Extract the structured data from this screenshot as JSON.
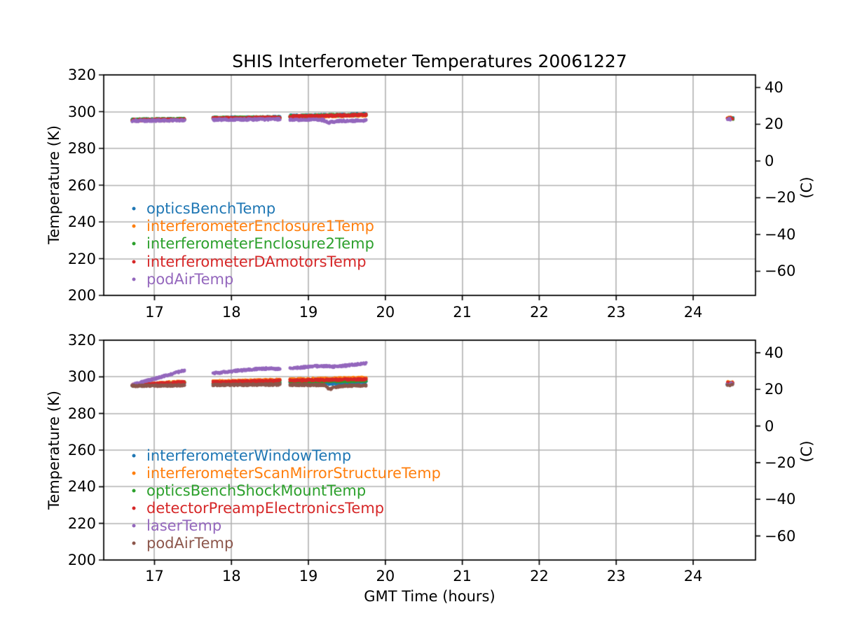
{
  "chart_data": [
    {
      "type": "scatter",
      "title": "SHIS Interferometer Temperatures 20061227",
      "xlabel": null,
      "ylabel_left": "Temperature (K)",
      "ylabel_right": "(C)",
      "xlim": [
        16.34,
        24.81
      ],
      "ylim_K": [
        200,
        320
      ],
      "xticks": [
        17,
        18,
        19,
        20,
        21,
        22,
        23,
        24
      ],
      "yticks_K": [
        200,
        220,
        240,
        260,
        280,
        300,
        320
      ],
      "yticks_C_values": [
        40,
        20,
        0,
        -20,
        -40,
        -60
      ],
      "yticks_C_labels": [
        "40",
        "20",
        "0",
        "−20",
        "−40",
        "−60"
      ],
      "grid": true,
      "legend_position": "lower-left-inside",
      "series": [
        {
          "name": "opticsBenchTemp",
          "color": "#1f77b4",
          "segments": [
            [
              [
                16.71,
                295.5
              ],
              [
                17.39,
                295.9
              ]
            ],
            [
              [
                17.76,
                296.6
              ],
              [
                18.2,
                296.8
              ],
              [
                18.63,
                296.9
              ]
            ],
            [
              [
                18.76,
                297.7
              ],
              [
                19.3,
                298.1
              ],
              [
                19.75,
                298.6
              ]
            ],
            [
              [
                24.44,
                296.3
              ],
              [
                24.52,
                296.3
              ]
            ]
          ]
        },
        {
          "name": "interferometerEnclosure1Temp",
          "color": "#ff7f0e",
          "segments": [
            [
              [
                16.71,
                295.3
              ],
              [
                17.39,
                295.7
              ]
            ],
            [
              [
                17.76,
                296.2
              ],
              [
                18.63,
                296.6
              ]
            ],
            [
              [
                18.76,
                297.2
              ],
              [
                19.75,
                298.0
              ]
            ],
            [
              [
                24.44,
                296.6
              ],
              [
                24.52,
                296.6
              ]
            ]
          ]
        },
        {
          "name": "interferometerEnclosure2Temp",
          "color": "#2ca02c",
          "segments": [
            [
              [
                16.71,
                295.6
              ],
              [
                17.39,
                296.0
              ]
            ],
            [
              [
                17.76,
                296.5
              ],
              [
                18.63,
                296.9
              ]
            ],
            [
              [
                18.76,
                297.5
              ],
              [
                19.75,
                298.3
              ]
            ],
            [
              [
                24.44,
                296.1
              ],
              [
                24.52,
                296.1
              ]
            ]
          ]
        },
        {
          "name": "interferometerDAmotorsTemp",
          "color": "#d62728",
          "segments": [
            [
              [
                16.71,
                295.3
              ],
              [
                17.39,
                295.7
              ]
            ],
            [
              [
                17.76,
                296.3
              ],
              [
                18.63,
                296.7
              ]
            ],
            [
              [
                18.76,
                297.4
              ],
              [
                19.3,
                297.8
              ],
              [
                19.75,
                298.3
              ]
            ],
            [
              [
                24.44,
                296.5
              ],
              [
                24.52,
                296.5
              ]
            ]
          ]
        },
        {
          "name": "podAirTemp",
          "color": "#9467bd",
          "segments": [
            [
              [
                16.71,
                295.0
              ],
              [
                17.39,
                295.3
              ]
            ],
            [
              [
                17.76,
                295.6
              ],
              [
                18.63,
                295.8
              ]
            ],
            [
              [
                18.76,
                295.6
              ],
              [
                19.18,
                295.5
              ],
              [
                19.27,
                294.0
              ],
              [
                19.38,
                294.9
              ],
              [
                19.55,
                295.0
              ],
              [
                19.75,
                295.2
              ]
            ],
            [
              [
                24.44,
                295.9
              ],
              [
                24.52,
                295.9
              ]
            ]
          ]
        }
      ]
    },
    {
      "type": "scatter",
      "title": null,
      "xlabel": "GMT Time (hours)",
      "ylabel_left": "Temperature (K)",
      "ylabel_right": "(C)",
      "xlim": [
        16.34,
        24.81
      ],
      "ylim_K": [
        200,
        320
      ],
      "xticks": [
        17,
        18,
        19,
        20,
        21,
        22,
        23,
        24
      ],
      "yticks_K": [
        200,
        220,
        240,
        260,
        280,
        300,
        320
      ],
      "yticks_C_values": [
        40,
        20,
        0,
        -20,
        -40,
        -60
      ],
      "yticks_C_labels": [
        "40",
        "20",
        "0",
        "−20",
        "−40",
        "−60"
      ],
      "grid": true,
      "legend_position": "lower-left-inside",
      "series": [
        {
          "name": "interferometerWindowTemp",
          "color": "#1f77b4",
          "segments": [
            [
              [
                16.71,
                295.3
              ],
              [
                17.39,
                296.2
              ]
            ],
            [
              [
                17.76,
                296.1
              ],
              [
                18.63,
                296.6
              ]
            ],
            [
              [
                18.76,
                296.6
              ],
              [
                19.2,
                296.8
              ],
              [
                19.27,
                296.3
              ],
              [
                19.75,
                297.0
              ]
            ],
            [
              [
                24.44,
                296.0
              ],
              [
                24.52,
                296.0
              ]
            ]
          ]
        },
        {
          "name": "interferometerScanMirrorStructureTemp",
          "color": "#ff7f0e",
          "segments": [
            [
              [
                16.71,
                295.5
              ],
              [
                17.39,
                297.4
              ]
            ],
            [
              [
                17.76,
                297.4
              ],
              [
                18.63,
                298.4
              ]
            ],
            [
              [
                18.76,
                298.5
              ],
              [
                19.75,
                299.4
              ]
            ],
            [
              [
                24.44,
                297.0
              ],
              [
                24.52,
                297.0
              ]
            ]
          ]
        },
        {
          "name": "opticsBenchShockMountTemp",
          "color": "#2ca02c",
          "segments": [
            [
              [
                16.71,
                295.4
              ],
              [
                17.39,
                296.7
              ]
            ],
            [
              [
                17.76,
                296.7
              ],
              [
                18.63,
                297.3
              ]
            ],
            [
              [
                18.76,
                297.4
              ],
              [
                19.75,
                297.9
              ]
            ],
            [
              [
                24.44,
                296.3
              ],
              [
                24.52,
                296.3
              ]
            ]
          ]
        },
        {
          "name": "detectorPreampElectronicsTemp",
          "color": "#d62728",
          "segments": [
            [
              [
                16.71,
                295.6
              ],
              [
                17.39,
                297.1
              ]
            ],
            [
              [
                17.76,
                297.1
              ],
              [
                18.63,
                297.9
              ]
            ],
            [
              [
                18.76,
                298.0
              ],
              [
                19.75,
                298.7
              ]
            ],
            [
              [
                24.44,
                296.6
              ],
              [
                24.52,
                296.6
              ]
            ]
          ]
        },
        {
          "name": "laserTemp",
          "color": "#9467bd",
          "segments": [
            [
              [
                16.71,
                295.6
              ],
              [
                17.39,
                303.5
              ]
            ],
            [
              [
                17.76,
                301.9
              ],
              [
                18.05,
                303.2
              ],
              [
                18.3,
                304.2
              ],
              [
                18.45,
                304.5
              ],
              [
                18.63,
                304.4
              ]
            ],
            [
              [
                18.76,
                304.5
              ],
              [
                19.05,
                305.7
              ],
              [
                19.2,
                305.9
              ],
              [
                19.32,
                305.5
              ],
              [
                19.5,
                306.2
              ],
              [
                19.75,
                307.3
              ]
            ],
            [
              [
                24.44,
                296.2
              ],
              [
                24.52,
                296.2
              ]
            ]
          ]
        },
        {
          "name": "podAirTemp",
          "color": "#8c564b",
          "segments": [
            [
              [
                16.71,
                295.0
              ],
              [
                17.39,
                295.4
              ]
            ],
            [
              [
                17.76,
                295.5
              ],
              [
                18.63,
                295.8
              ]
            ],
            [
              [
                18.76,
                295.6
              ],
              [
                19.2,
                295.5
              ],
              [
                19.28,
                293.2
              ],
              [
                19.4,
                294.9
              ],
              [
                19.75,
                295.4
              ]
            ],
            [
              [
                24.44,
                295.6
              ],
              [
                24.52,
                295.6
              ]
            ]
          ]
        }
      ]
    }
  ],
  "style_colors": {
    "grid": "#b0b0b0",
    "frame": "#000000",
    "background": "#ffffff"
  }
}
